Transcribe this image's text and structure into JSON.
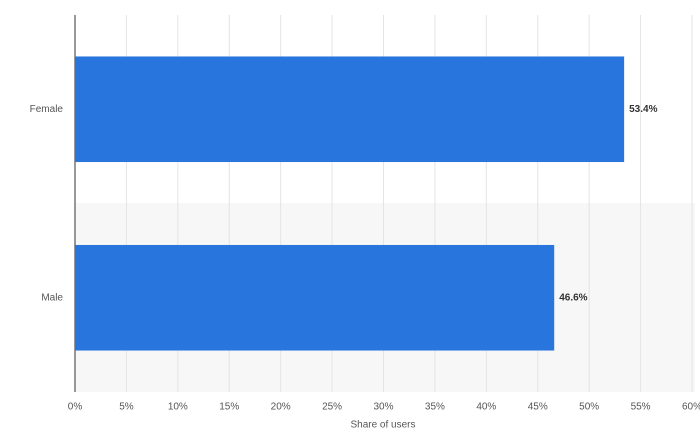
{
  "chart_data": {
    "type": "hbar",
    "categories": [
      "Female",
      "Male"
    ],
    "values": [
      53.4,
      46.6
    ],
    "value_labels": [
      "53.4%",
      "46.6%"
    ],
    "color": "#2876dd",
    "xlabel": "Share of users",
    "xlim": [
      0,
      60
    ],
    "xticks": [
      {
        "value": 0,
        "label": "0%"
      },
      {
        "value": 5,
        "label": "5%"
      },
      {
        "value": 10,
        "label": "10%"
      },
      {
        "value": 15,
        "label": "15%"
      },
      {
        "value": 20,
        "label": "20%"
      },
      {
        "value": 25,
        "label": "25%"
      },
      {
        "value": 30,
        "label": "30%"
      },
      {
        "value": 35,
        "label": "35%"
      },
      {
        "value": 40,
        "label": "40%"
      },
      {
        "value": 45,
        "label": "45%"
      },
      {
        "value": 50,
        "label": "50%"
      },
      {
        "value": 55,
        "label": "55%"
      },
      {
        "value": 60,
        "label": "60%"
      }
    ],
    "grid": true
  }
}
